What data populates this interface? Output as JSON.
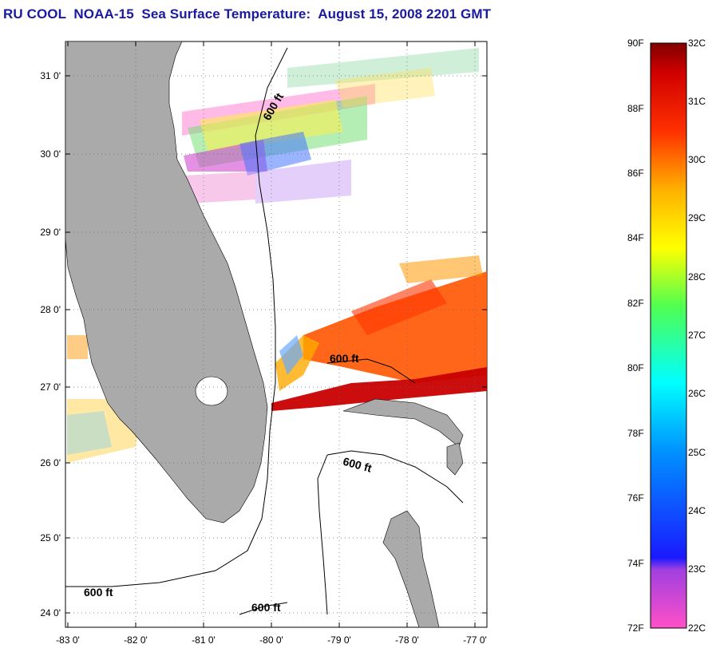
{
  "title": "RU COOL  NOAA-15  Sea Surface Temperature:  August 15, 2008 2201 GMT",
  "axes": {
    "lon_ticks": [
      "-83 0'",
      "-82 0'",
      "-81 0'",
      "-80 0'",
      "-79 0'",
      "-78 0'",
      "-77 0'"
    ],
    "lat_ticks": [
      "31 0'",
      "30 0'",
      "29 0'",
      "28 0'",
      "27 0'",
      "26 0'",
      "25 0'",
      "24 0'"
    ],
    "lon_range": [
      -83,
      -76.8
    ],
    "lat_range": [
      23.85,
      31.45
    ]
  },
  "contour_labels": [
    "600 ft",
    "600 ft",
    "600 ft",
    "600 ft",
    "600 ft"
  ],
  "colorbar": {
    "fahrenheit": [
      "90F",
      "88F",
      "86F",
      "84F",
      "82F",
      "80F",
      "78F",
      "76F",
      "74F",
      "72F"
    ],
    "celsius": [
      "32C",
      "31C",
      "30C",
      "29C",
      "28C",
      "27C",
      "26C",
      "25C",
      "24C",
      "23C",
      "22C"
    ]
  },
  "colors": {
    "land": "#aaaaaa",
    "title": "#1a1aa0",
    "warm": "#ff5500",
    "hot": "#c80000"
  }
}
